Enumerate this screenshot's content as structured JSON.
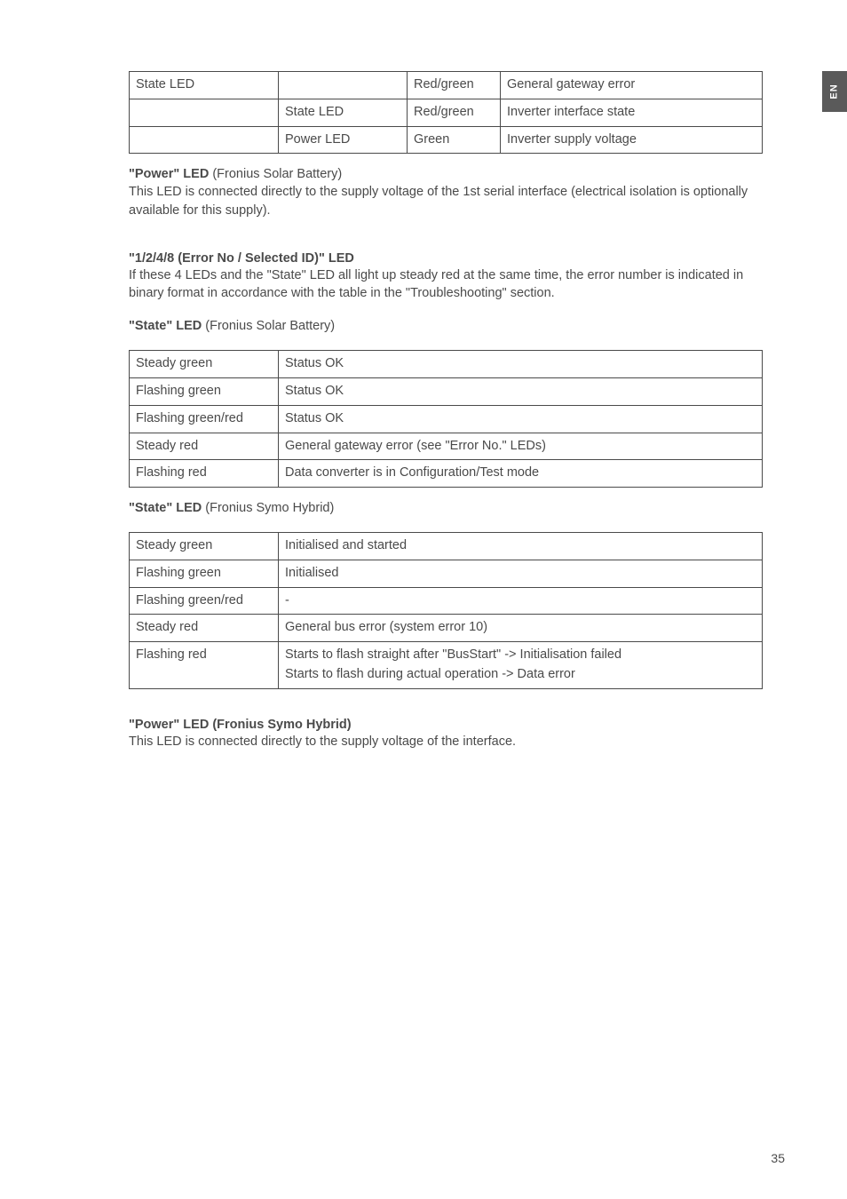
{
  "sideTab": "EN",
  "pageNumber": "35",
  "table1": {
    "rows": [
      [
        "State LED",
        "",
        "Red/green",
        "General gateway error"
      ],
      [
        "",
        "State LED",
        "Red/green",
        "Inverter interface state"
      ],
      [
        "",
        "Power LED",
        "Green",
        "Inverter supply voltage"
      ]
    ]
  },
  "powerLed": {
    "title": "\"Power\" LED",
    "titleSuffix": " (Fronius Solar Battery)",
    "para": "This LED is connected directly to the supply voltage of the 1st serial interface (electrical isolation is optionally available for this supply)."
  },
  "errorLed": {
    "title": "\"1/2/4/8 (Error No / Selected ID)\" LED",
    "para": "If these 4 LEDs and the \"State\" LED all light up steady red at the same time, the error number is indicated in binary format in accordance with the table in the \"Troubleshooting\" section."
  },
  "stateLedBattery": {
    "title": "\"State\" LED",
    "titleSuffix": " (Fronius Solar Battery)",
    "rows": [
      [
        "Steady green",
        "Status OK"
      ],
      [
        "Flashing green",
        "Status OK"
      ],
      [
        "Flashing green/red",
        "Status OK"
      ],
      [
        "Steady red",
        "General gateway error (see \"Error No.\" LEDs)"
      ],
      [
        "Flashing red",
        "Data converter is in Configuration/Test mode"
      ]
    ]
  },
  "stateLedHybrid": {
    "title": "\"State\" LED",
    "titleSuffix": " (Fronius Symo Hybrid)",
    "rows": [
      [
        "Steady green",
        "Initialised and started"
      ],
      [
        "Flashing green",
        "Initialised"
      ],
      [
        "Flashing green/red",
        "-"
      ],
      [
        "Steady red",
        "General bus error (system error 10)"
      ],
      [
        "Flashing red",
        "Starts to flash straight after \"BusStart\" -> Initialisation failed\nStarts to flash during actual operation -> Data error"
      ]
    ]
  },
  "powerLedHybrid": {
    "title": "\"Power\" LED (Fronius Symo Hybrid)",
    "para": "This LED is connected directly to the supply voltage of the interface."
  }
}
